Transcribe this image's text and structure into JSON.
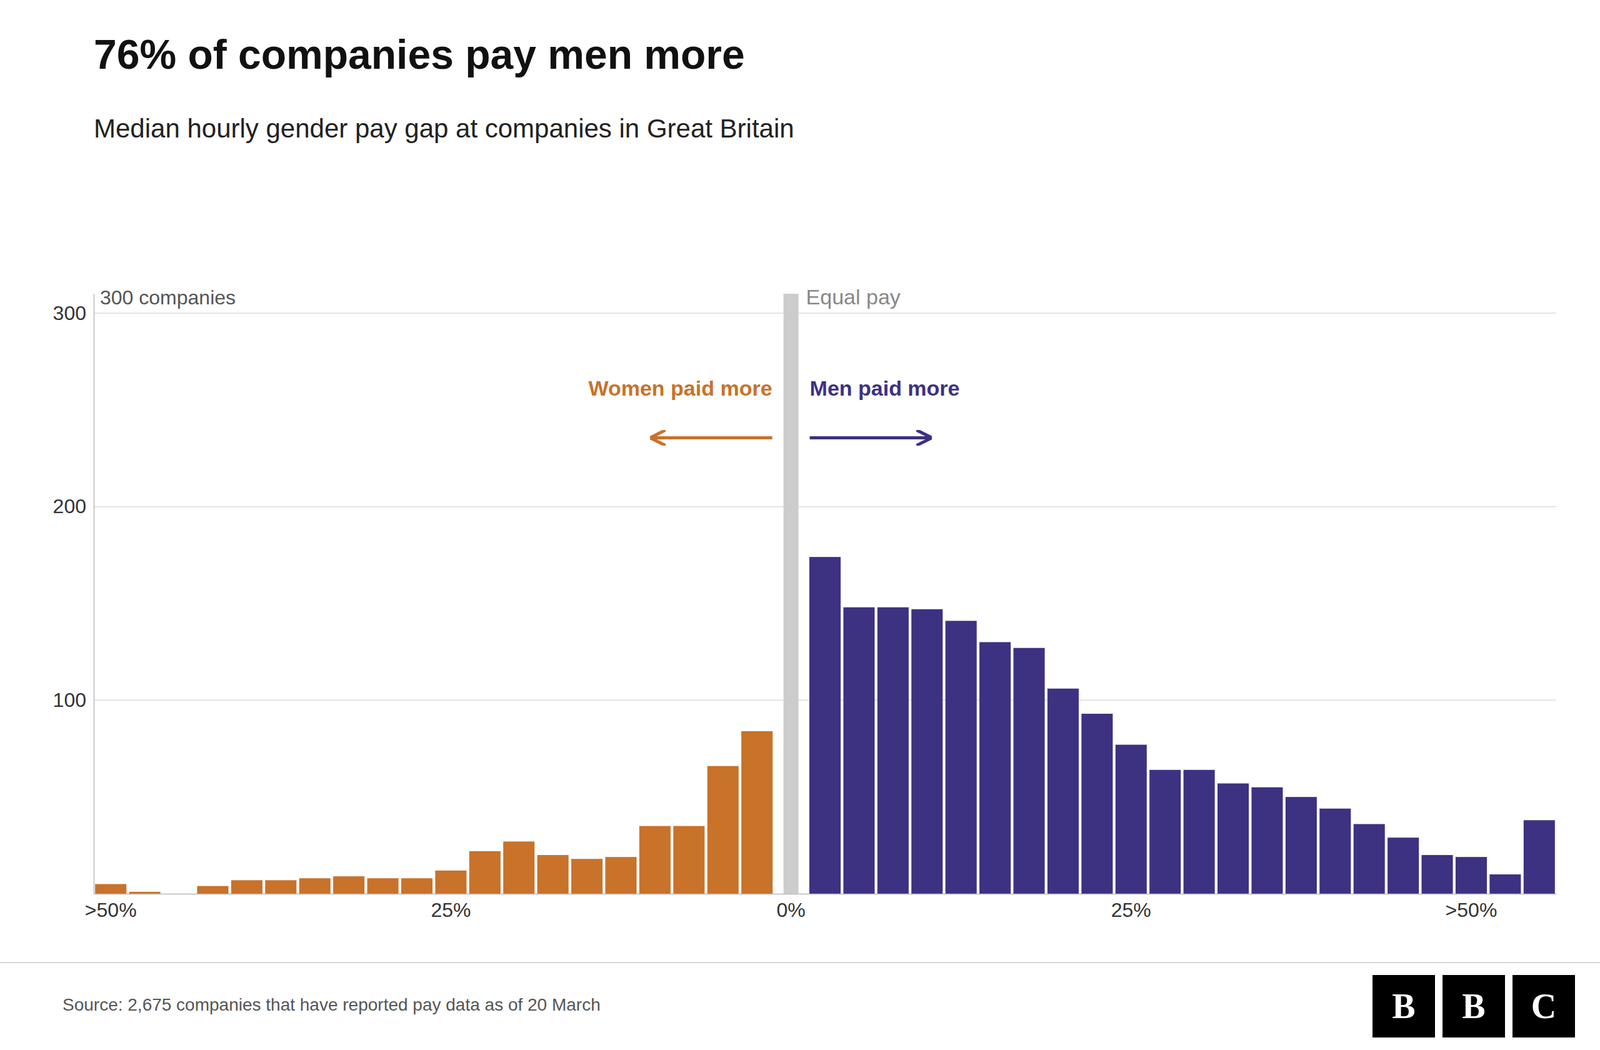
{
  "chart_data": {
    "type": "bar",
    "title": "76% of companies pay men more",
    "subtitle": "Median hourly gender pay gap at companies in Great Britain",
    "ylabel": "300 companies",
    "source": "Source: 2,675 companies that have reported pay data as of 20 March",
    "annotations": [
      "Equal pay",
      "Women paid more",
      "Men paid more"
    ],
    "logo": "BBC",
    "categories": [
      ">50%",
      null,
      null,
      null,
      null,
      null,
      null,
      null,
      null,
      null,
      "25%",
      null,
      null,
      null,
      null,
      null,
      null,
      null,
      null,
      null,
      "0%",
      null,
      null,
      null,
      null,
      null,
      null,
      null,
      null,
      null,
      "25%",
      null,
      null,
      null,
      null,
      null,
      null,
      null,
      null,
      null,
      ">50%",
      null,
      null
    ],
    "series": [
      {
        "color": "#c8722a",
        "values": [
          5,
          1,
          0,
          4,
          7,
          7,
          8,
          9,
          8,
          8,
          12,
          22,
          27,
          20,
          18,
          19,
          35,
          35,
          66,
          84,
          null,
          null,
          null,
          null,
          null,
          null,
          null,
          null,
          null,
          null,
          null,
          null,
          null,
          null,
          null,
          null,
          null,
          null,
          null,
          null,
          null,
          null,
          null
        ]
      },
      {
        "color": "#3d3182",
        "values": [
          null,
          null,
          null,
          null,
          null,
          null,
          null,
          null,
          null,
          null,
          null,
          null,
          null,
          null,
          null,
          null,
          null,
          null,
          null,
          null,
          null,
          174,
          148,
          148,
          147,
          141,
          130,
          127,
          106,
          93,
          77,
          64,
          64,
          57,
          55,
          50,
          44,
          36,
          29,
          20,
          19,
          10,
          38
        ]
      }
    ],
    "ylim": [
      0,
      310
    ],
    "yticks": [
      100,
      200,
      300
    ],
    "grid": true
  }
}
